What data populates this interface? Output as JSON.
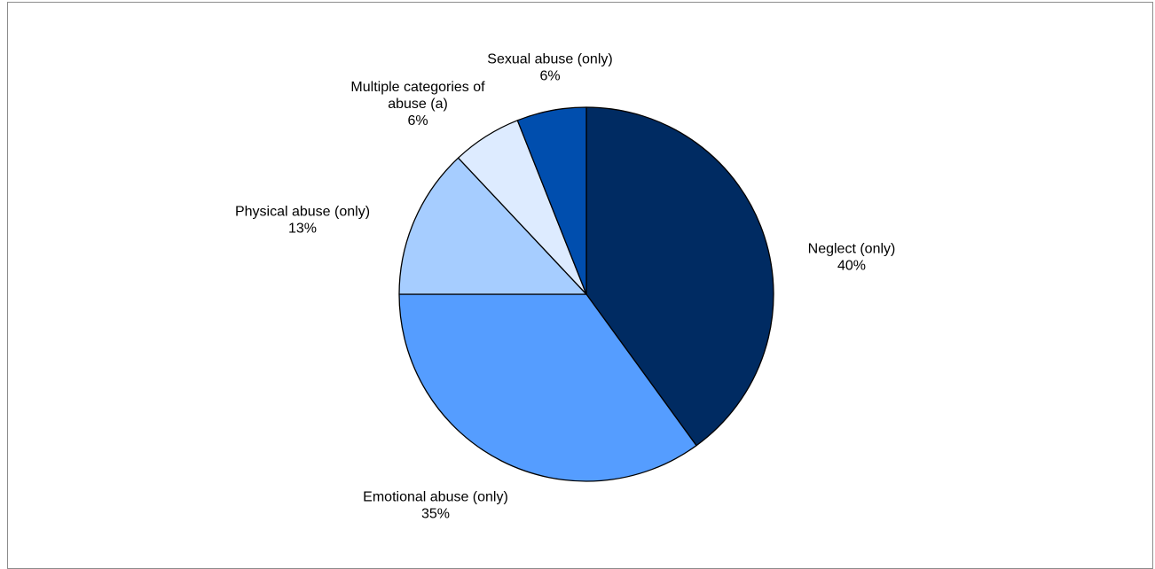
{
  "chart_data": {
    "type": "pie",
    "title": "",
    "slices": [
      {
        "label_lines": [
          "Neglect (only)"
        ],
        "value_label": "40%",
        "value": 40,
        "color": "#002B62"
      },
      {
        "label_lines": [
          "Emotional abuse (only)"
        ],
        "value_label": "35%",
        "value": 35,
        "color": "#559DFF"
      },
      {
        "label_lines": [
          "Physical abuse (only)"
        ],
        "value_label": "13%",
        "value": 13,
        "color": "#A6CDFF"
      },
      {
        "label_lines": [
          "Multiple categories of",
          "abuse (a)"
        ],
        "value_label": "6%",
        "value": 6,
        "color": "#DDEBFF"
      },
      {
        "label_lines": [
          "Sexual abuse (only)"
        ],
        "value_label": "6%",
        "value": 6,
        "color": "#004EAE"
      }
    ],
    "legend": "none",
    "start_angle": "12 o'clock",
    "direction": "clockwise"
  }
}
